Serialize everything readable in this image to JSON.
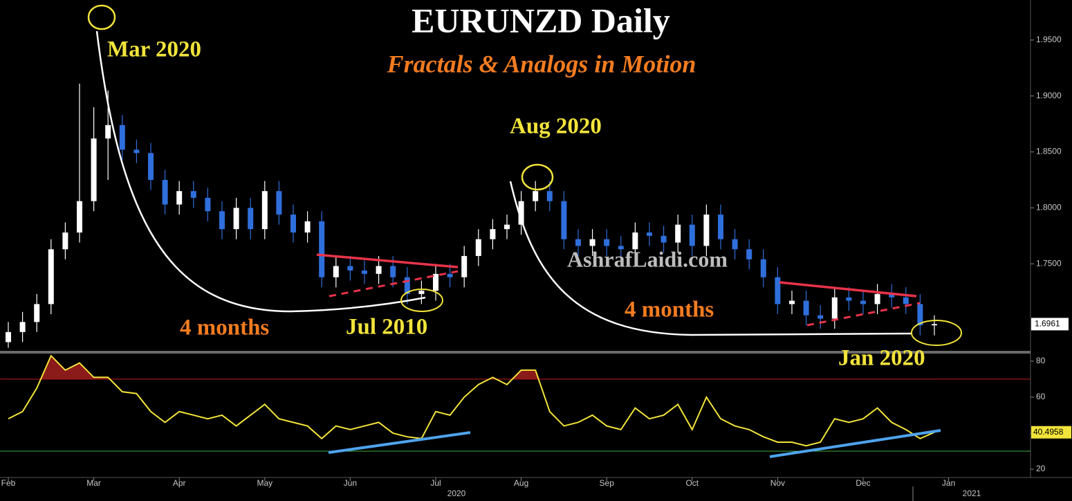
{
  "chart_data": [
    {
      "type": "candlestick",
      "title": "EURUNZD Daily",
      "subtitle": "Fractals & Analogs in Motion",
      "annotations": [
        "Mar 2020",
        "Aug 2020",
        "Jul 2010",
        "4 months",
        "4 months",
        "Jan 2020"
      ],
      "watermark": "AshrafLaidi.com",
      "categories": [
        "Feb",
        null,
        null,
        null,
        null,
        null,
        "Mar",
        null,
        null,
        null,
        null,
        null,
        "Apr",
        null,
        null,
        null,
        null,
        null,
        "May",
        null,
        null,
        null,
        null,
        null,
        "Jun",
        null,
        null,
        null,
        null,
        null,
        "Jul",
        null,
        null,
        null,
        null,
        null,
        "Aug",
        null,
        null,
        null,
        null,
        null,
        "Sep",
        null,
        null,
        null,
        null,
        null,
        "Oct",
        null,
        null,
        null,
        null,
        null,
        "Nov",
        null,
        null,
        null,
        null,
        null,
        "Dec",
        null,
        null,
        null,
        null,
        null,
        "Jan"
      ],
      "years": [
        "2020",
        "2021"
      ],
      "open": [
        1.68,
        1.689,
        1.698,
        1.714,
        1.763,
        1.778,
        1.806,
        1.862,
        1.874,
        1.852,
        1.849,
        1.825,
        1.803,
        1.815,
        1.809,
        1.797,
        1.781,
        1.8,
        1.781,
        1.815,
        1.794,
        1.778,
        1.788,
        1.738,
        1.748,
        1.744,
        1.741,
        1.748,
        1.738,
        1.723,
        1.726,
        1.741,
        1.738,
        1.757,
        1.772,
        1.781,
        1.785,
        1.806,
        1.815,
        1.806,
        1.772,
        1.766,
        1.772,
        1.766,
        1.763,
        1.778,
        1.775,
        1.769,
        1.785,
        1.766,
        1.794,
        1.772,
        1.763,
        1.754,
        1.738,
        1.714,
        1.717,
        1.704,
        1.701,
        1.72,
        1.717,
        1.714,
        1.723,
        1.72,
        1.714,
        1.695,
        null
      ],
      "high": [
        1.698,
        1.707,
        1.723,
        1.772,
        1.787,
        1.911,
        1.89,
        1.905,
        1.883,
        1.861,
        1.858,
        1.834,
        1.824,
        1.824,
        1.818,
        1.806,
        1.809,
        1.809,
        1.824,
        1.824,
        1.803,
        1.797,
        1.797,
        1.757,
        1.757,
        1.753,
        1.757,
        1.757,
        1.747,
        1.735,
        1.75,
        1.75,
        1.766,
        1.781,
        1.79,
        1.794,
        1.815,
        1.824,
        1.824,
        1.815,
        1.781,
        1.781,
        1.781,
        1.775,
        1.787,
        1.787,
        1.784,
        1.794,
        1.794,
        1.803,
        1.803,
        1.781,
        1.772,
        1.763,
        1.747,
        1.726,
        1.726,
        1.713,
        1.729,
        1.729,
        1.726,
        1.732,
        1.732,
        1.729,
        1.723,
        1.704,
        null
      ],
      "low": [
        1.675,
        1.68,
        1.689,
        1.705,
        1.754,
        1.769,
        1.797,
        1.825,
        1.843,
        1.84,
        1.816,
        1.794,
        1.794,
        1.8,
        1.788,
        1.772,
        1.772,
        1.772,
        1.772,
        1.785,
        1.769,
        1.769,
        1.729,
        1.729,
        1.735,
        1.732,
        1.732,
        1.729,
        1.714,
        1.714,
        1.717,
        1.729,
        1.729,
        1.748,
        1.763,
        1.772,
        1.776,
        1.797,
        1.797,
        1.763,
        1.757,
        1.757,
        1.757,
        1.754,
        1.754,
        1.766,
        1.76,
        1.76,
        1.757,
        1.757,
        1.763,
        1.754,
        1.745,
        1.729,
        1.705,
        1.705,
        1.695,
        1.692,
        1.692,
        1.708,
        1.705,
        1.705,
        1.711,
        1.705,
        1.686,
        1.686,
        null
      ],
      "close": [
        1.689,
        1.698,
        1.714,
        1.763,
        1.778,
        1.806,
        1.862,
        1.874,
        1.852,
        1.849,
        1.825,
        1.803,
        1.815,
        1.809,
        1.797,
        1.781,
        1.8,
        1.781,
        1.815,
        1.794,
        1.778,
        1.788,
        1.738,
        1.748,
        1.744,
        1.741,
        1.748,
        1.738,
        1.723,
        1.726,
        1.741,
        1.738,
        1.757,
        1.772,
        1.781,
        1.785,
        1.806,
        1.815,
        1.806,
        1.772,
        1.766,
        1.772,
        1.766,
        1.763,
        1.778,
        1.775,
        1.769,
        1.785,
        1.766,
        1.794,
        1.772,
        1.763,
        1.754,
        1.738,
        1.714,
        1.717,
        1.704,
        1.701,
        1.72,
        1.717,
        1.714,
        1.723,
        1.72,
        1.714,
        1.695,
        1.6961,
        null
      ],
      "up_color": "#ffffff",
      "down_color": "#2f6fdc",
      "ylim": [
        1.6716,
        1.9858
      ],
      "yticks": [
        {
          "value": 1.75,
          "label": "1.7500"
        },
        {
          "value": 1.8,
          "label": "1.8000"
        },
        {
          "value": 1.85,
          "label": "1.8500"
        },
        {
          "value": 1.9,
          "label": "1.9000"
        },
        {
          "value": 1.95,
          "label": "1.9500"
        }
      ]
    },
    {
      "type": "line",
      "series": [
        {
          "color": "#f2e43a",
          "values": [
            48,
            52,
            65,
            83,
            75,
            79,
            71,
            71,
            63,
            62,
            52,
            46,
            52,
            50,
            48,
            50,
            44,
            50,
            56,
            48,
            46,
            44,
            37,
            44,
            42,
            44,
            46,
            40,
            38,
            37,
            52,
            50,
            60,
            67,
            71,
            67,
            75,
            75,
            52,
            44,
            46,
            50,
            44,
            42,
            54,
            48,
            50,
            56,
            42,
            60,
            48,
            44,
            42,
            38,
            35,
            35,
            33,
            35,
            48,
            46,
            48,
            54,
            46,
            42,
            37,
            40.4958,
            null
          ]
        }
      ],
      "ylim": [
        15.4,
        83.8
      ],
      "yticks": [
        20,
        40,
        60,
        80
      ],
      "hlines": [
        {
          "value": 70,
          "color": "#c81e1e"
        },
        {
          "value": 30,
          "color": "#3fae3f"
        }
      ]
    }
  ]
}
